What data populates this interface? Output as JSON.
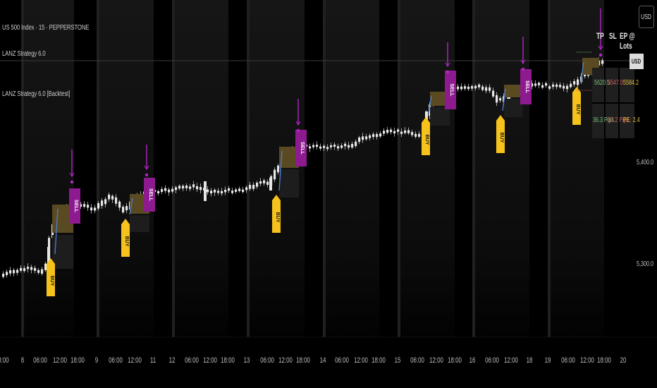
{
  "legend": {
    "symbol": "US 500 Index · 15 · PEPPERSTONE",
    "indicator1": "LANZ Strategy 6.0",
    "indicator2": "LANZ Strategy 6.0 [Backtest]"
  },
  "price_scale": {
    "currency_button": "USD",
    "current_price_tag": "USD",
    "tick_labels": [
      "5,400.0",
      "5,300.0"
    ]
  },
  "trade_table": {
    "headers": [
      "TP",
      "SL",
      "EP @ Lots"
    ],
    "row1": {
      "tp": "5620.5",
      "sl": "5547.0",
      "ep": "5584.2"
    },
    "row2": {
      "tp": "36.3 Pips",
      "sl": "-37.2 Pips",
      "ep": "PE: 2.4"
    }
  },
  "colors": {
    "background": "#000000",
    "session_band": "#161616",
    "candle": "#e6e6e6",
    "buy_label": "#f6c21c",
    "sell_label": "#8e1a8f",
    "arrow": "#b026c5",
    "tp_zone": "#5a4a21",
    "sl_zone": "#1d1d1d",
    "entry_marker": "#4a7bd0",
    "tp_text": "#7bc27b",
    "sl_text": "#d06060",
    "ep_text": "#e6c040"
  },
  "chart_data": {
    "type": "candlestick",
    "y_ticks": [
      5400,
      5300
    ],
    "x_tick_labels": [
      "8:00",
      "8",
      "06:00",
      "12:00",
      "18:00",
      "9",
      "06:00",
      "12:00",
      "11",
      "12",
      "06:00",
      "12:00",
      "18:00",
      "13",
      "06:00",
      "12:00",
      "18:00",
      "14",
      "06:00",
      "12:00",
      "18:00",
      "15",
      "06:00",
      "12:00",
      "18:00",
      "16",
      "06:00",
      "12:00",
      "18",
      "19",
      "06:00",
      "12:00",
      "18:00",
      "20"
    ],
    "trade_signals": [
      {
        "buy_label": "BUY",
        "sell_label": "SELL"
      },
      {
        "buy_label": "BUY",
        "sell_label": "SELL"
      },
      {
        "buy_label": "BUY",
        "sell_label": "SELL"
      },
      {
        "buy_label": "BUY",
        "sell_label": "SELL"
      },
      {
        "buy_label": "BUY",
        "sell_label": "SELL"
      },
      {
        "buy_label": "BUY",
        "sell_label": "SELL"
      }
    ]
  }
}
